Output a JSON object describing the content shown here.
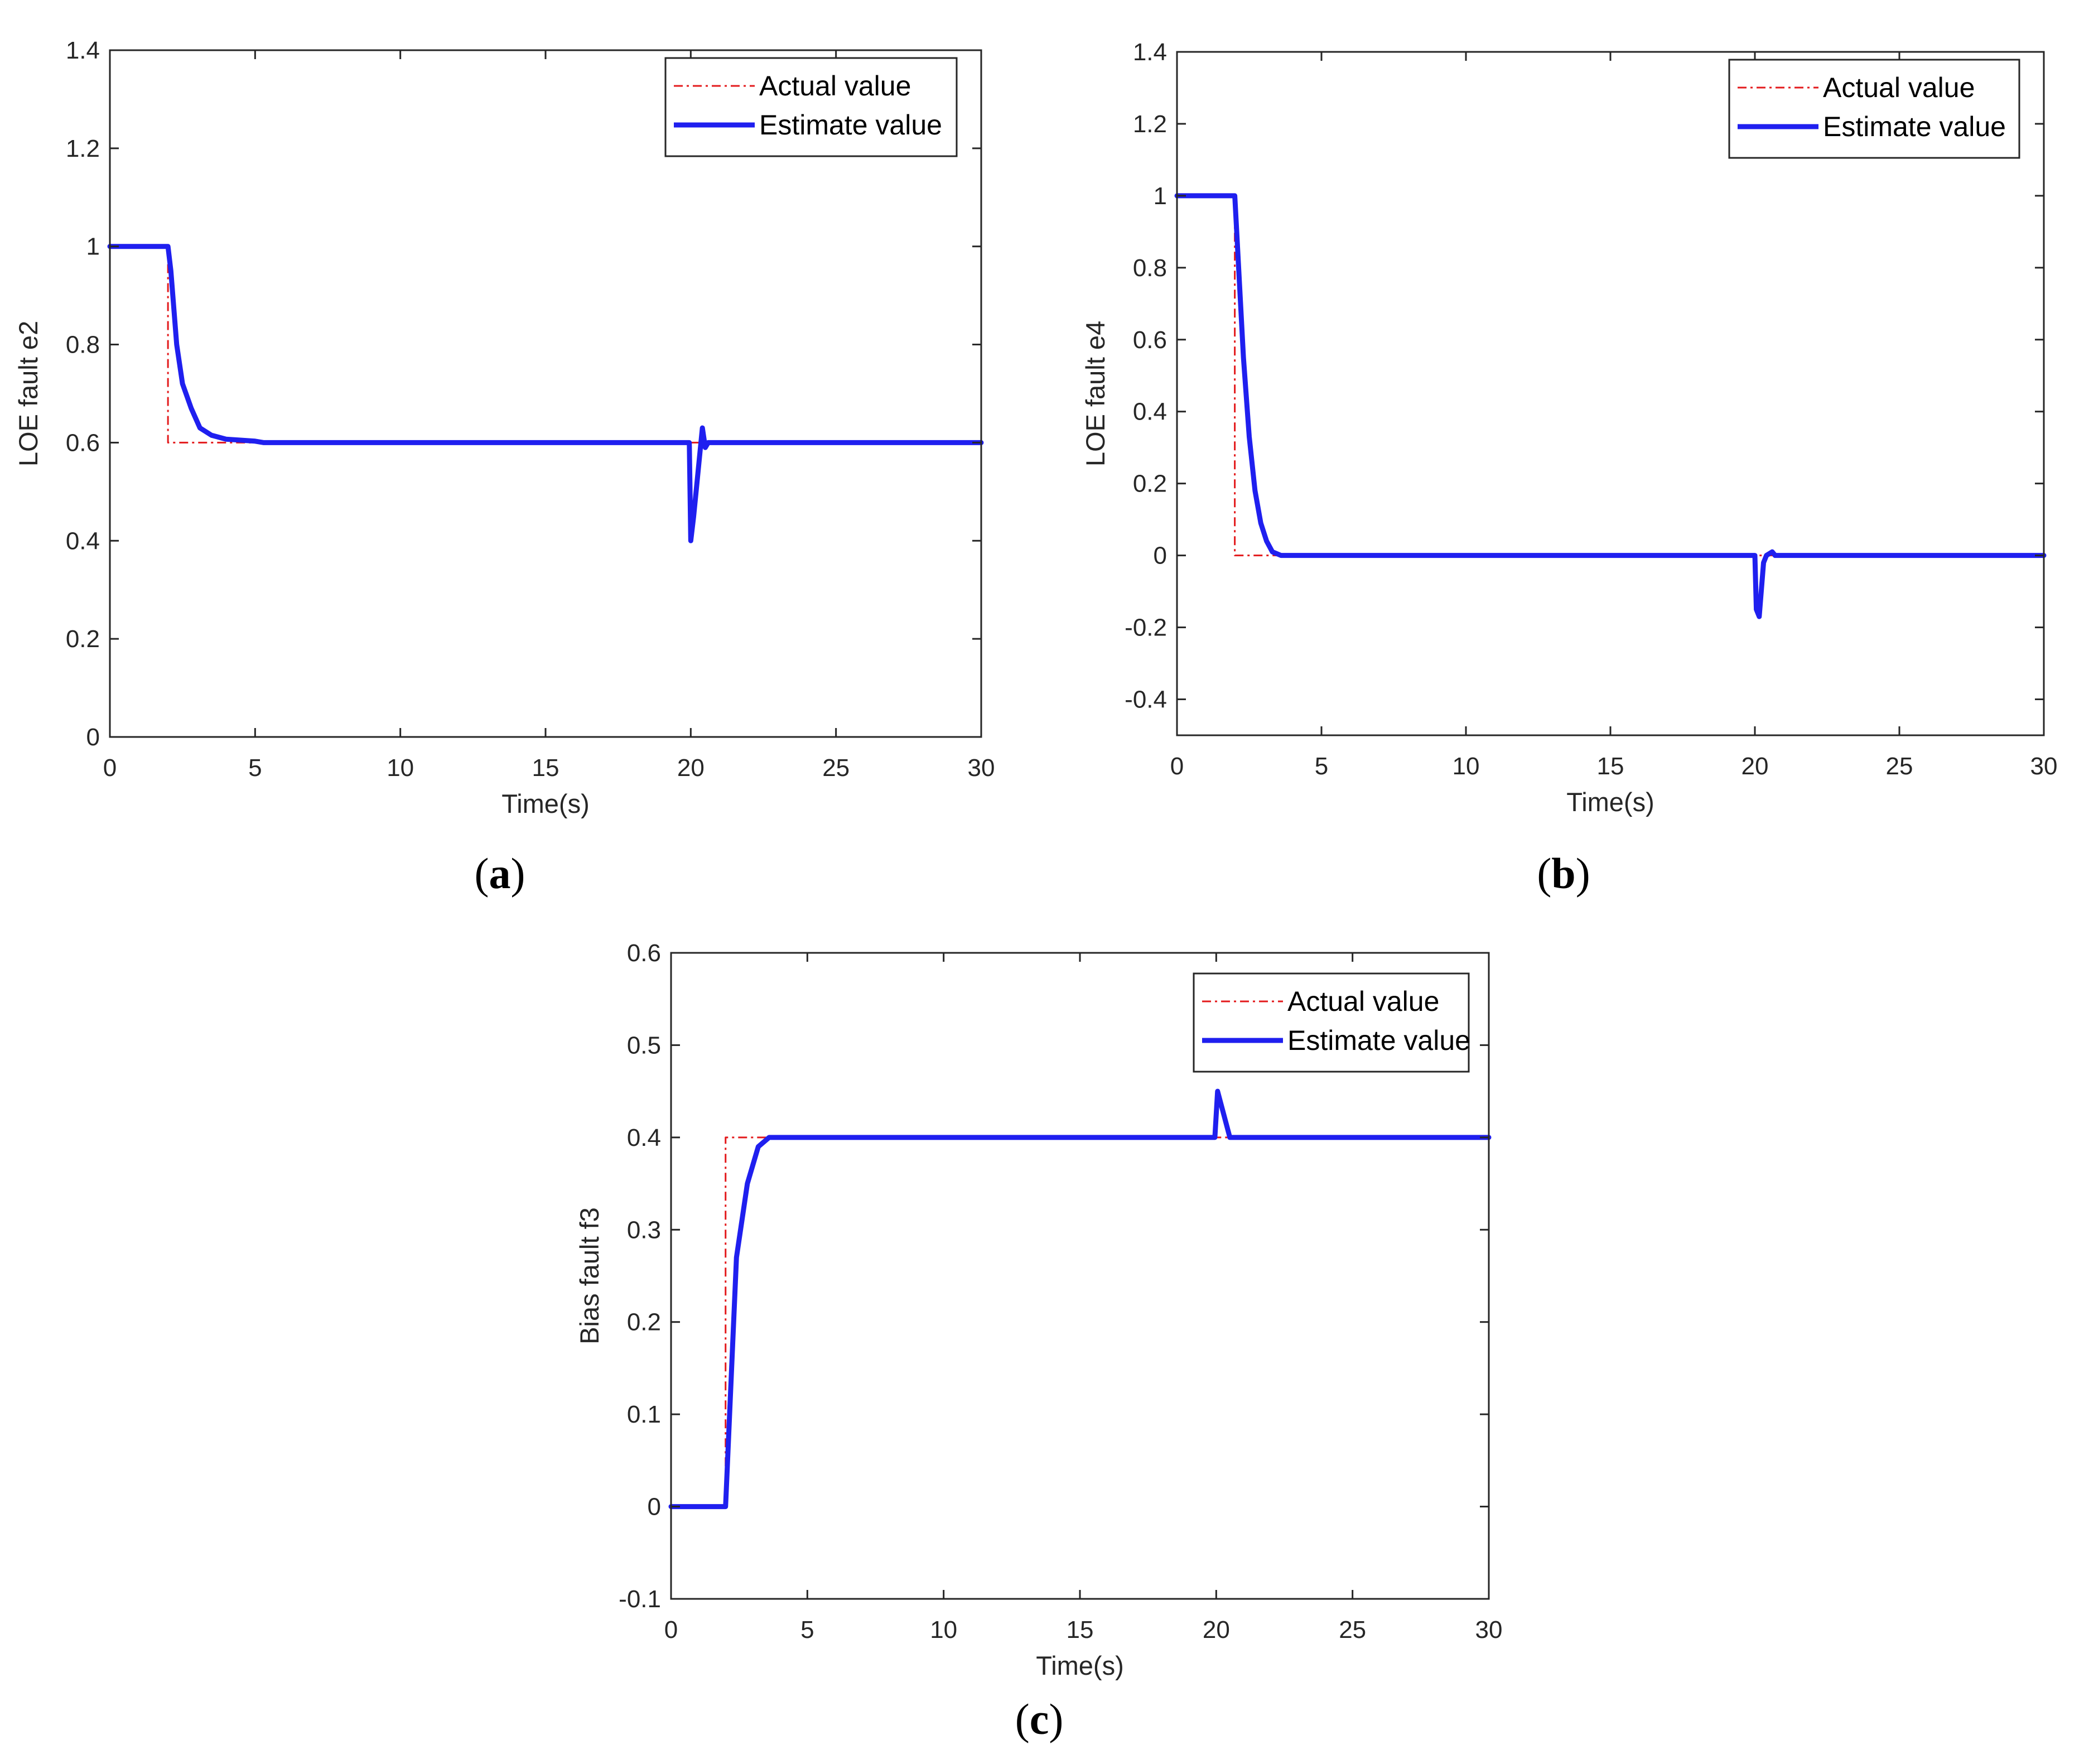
{
  "chart_data": [
    {
      "id": "a",
      "type": "line",
      "caption": {
        "open": "(",
        "letter": "a",
        "close": ")"
      },
      "xlabel": "Time(s)",
      "ylabel": "LOE fault e2",
      "xlim": [
        0,
        30
      ],
      "ylim": [
        0,
        1.4
      ],
      "xticks": [
        0,
        5,
        10,
        15,
        20,
        25,
        30
      ],
      "xtick_labels": [
        "0",
        "5",
        "10",
        "15",
        "20",
        "25",
        "30"
      ],
      "yticks": [
        0,
        0.2,
        0.4,
        0.6,
        0.8,
        1,
        1.2,
        1.4
      ],
      "ytick_labels": [
        "0",
        "0.2",
        "0.4",
        "0.6",
        "0.8",
        "1",
        "1.2",
        "1.4"
      ],
      "legend": {
        "position": "top-right"
      },
      "series": [
        {
          "name": "Actual value",
          "color": "#e31a1c",
          "style": "dash-dot",
          "x": [
            0,
            2,
            2,
            30
          ],
          "y": [
            1,
            1,
            0.6,
            0.6
          ]
        },
        {
          "name": "Estimate value",
          "color": "#1f1fef",
          "style": "solid",
          "x": [
            0,
            2,
            2.1,
            2.3,
            2.5,
            2.8,
            3.1,
            3.5,
            4,
            5,
            5.3,
            19.95,
            20,
            20.1,
            20.3,
            20.4,
            20.5,
            20.6,
            30
          ],
          "y": [
            1,
            1,
            0.95,
            0.8,
            0.72,
            0.67,
            0.63,
            0.615,
            0.607,
            0.603,
            0.6,
            0.6,
            0.4,
            0.45,
            0.57,
            0.63,
            0.59,
            0.6,
            0.6
          ]
        }
      ]
    },
    {
      "id": "b",
      "type": "line",
      "caption": {
        "open": "(",
        "letter": "b",
        "close": ")"
      },
      "xlabel": "Time(s)",
      "ylabel": "LOE fault e4",
      "xlim": [
        0,
        30
      ],
      "ylim": [
        -0.5,
        1.4
      ],
      "xticks": [
        0,
        5,
        10,
        15,
        20,
        25,
        30
      ],
      "xtick_labels": [
        "0",
        "5",
        "10",
        "15",
        "20",
        "25",
        "30"
      ],
      "yticks": [
        -0.4,
        -0.2,
        0,
        0.2,
        0.4,
        0.6,
        0.8,
        1,
        1.2,
        1.4
      ],
      "ytick_labels": [
        "-0.4",
        "-0.2",
        "0",
        "0.2",
        "0.4",
        "0.6",
        "0.8",
        "1",
        "1.2",
        "1.4"
      ],
      "legend": {
        "position": "top-right"
      },
      "series": [
        {
          "name": "Actual value",
          "color": "#e31a1c",
          "style": "dash-dot",
          "x": [
            0,
            2,
            2,
            30
          ],
          "y": [
            1,
            1,
            0,
            0
          ]
        },
        {
          "name": "Estimate value",
          "color": "#1f1fef",
          "style": "solid",
          "x": [
            0,
            2,
            2.1,
            2.3,
            2.5,
            2.7,
            2.9,
            3.1,
            3.3,
            3.6,
            4,
            20,
            20.05,
            20.15,
            20.3,
            20.4,
            20.6,
            20.7,
            30
          ],
          "y": [
            1,
            1,
            0.85,
            0.55,
            0.33,
            0.18,
            0.09,
            0.04,
            0.01,
            0,
            0,
            0,
            -0.15,
            -0.17,
            -0.02,
            0,
            0.01,
            0,
            0
          ]
        }
      ]
    },
    {
      "id": "c",
      "type": "line",
      "caption": {
        "open": "(",
        "letter": "c",
        "close": ")"
      },
      "xlabel": "Time(s)",
      "ylabel": "Bias fault f3",
      "xlim": [
        0,
        30
      ],
      "ylim": [
        -0.1,
        0.6
      ],
      "xticks": [
        0,
        5,
        10,
        15,
        20,
        25,
        30
      ],
      "xtick_labels": [
        "0",
        "5",
        "10",
        "15",
        "20",
        "25",
        "30"
      ],
      "yticks": [
        -0.1,
        0,
        0.1,
        0.2,
        0.3,
        0.4,
        0.5,
        0.6
      ],
      "ytick_labels": [
        "-0.1",
        "0",
        "0.1",
        "0.2",
        "0.3",
        "0.4",
        "0.5",
        "0.6"
      ],
      "legend": {
        "position": "top-right"
      },
      "series": [
        {
          "name": "Actual value",
          "color": "#e31a1c",
          "style": "dash-dot",
          "x": [
            0,
            2,
            2,
            30
          ],
          "y": [
            0,
            0,
            0.4,
            0.4
          ]
        },
        {
          "name": "Estimate value",
          "color": "#1f1fef",
          "style": "solid",
          "x": [
            0,
            2,
            2.4,
            2.8,
            3.2,
            3.6,
            4,
            19.95,
            20.05,
            20.5,
            30
          ],
          "y": [
            0,
            0,
            0.27,
            0.35,
            0.39,
            0.4,
            0.4,
            0.4,
            0.45,
            0.4,
            0.4
          ]
        }
      ]
    }
  ]
}
